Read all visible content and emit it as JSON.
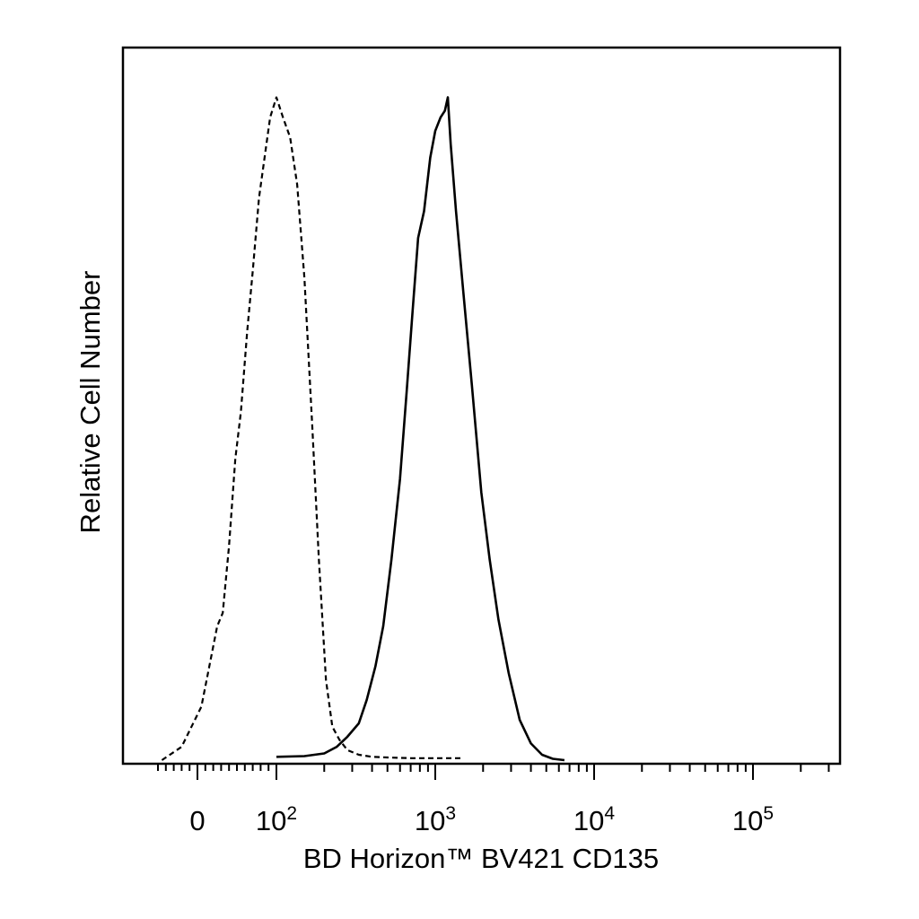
{
  "chart_data": {
    "type": "line",
    "xlabel": "BD Horizon™ BV421 CD135",
    "ylabel": "Relative Cell Number",
    "x_scale": "biexponential",
    "xlim": [
      -60,
      250000
    ],
    "ylim": [
      0,
      1
    ],
    "grid": false,
    "x_ticks": [
      {
        "value": 0,
        "label": "0",
        "sup": ""
      },
      {
        "value": 100,
        "label": "10",
        "sup": "2"
      },
      {
        "value": 1000,
        "label": "10",
        "sup": "3"
      },
      {
        "value": 10000,
        "label": "10",
        "sup": "4"
      },
      {
        "value": 100000,
        "label": "10",
        "sup": "5"
      }
    ],
    "series": [
      {
        "style": "dashed",
        "x": [
          -45,
          -20,
          5,
          15,
          25,
          32,
          40,
          48,
          55,
          63,
          70,
          78,
          85,
          92,
          100,
          110,
          122,
          135,
          150,
          168,
          185,
          205,
          225,
          250,
          280,
          330,
          400,
          500,
          700,
          1000,
          1500
        ],
        "y": [
          0,
          0.02,
          0.08,
          0.14,
          0.2,
          0.22,
          0.32,
          0.45,
          0.52,
          0.64,
          0.73,
          0.84,
          0.9,
          0.96,
          0.99,
          0.96,
          0.93,
          0.86,
          0.72,
          0.5,
          0.3,
          0.12,
          0.05,
          0.03,
          0.015,
          0.008,
          0.005,
          0.004,
          0.003,
          0.003,
          0.003
        ]
      },
      {
        "style": "solid",
        "x": [
          100,
          150,
          200,
          240,
          280,
          330,
          370,
          420,
          470,
          530,
          600,
          660,
          720,
          780,
          850,
          930,
          1000,
          1080,
          1150,
          1200,
          1250,
          1350,
          1500,
          1700,
          1950,
          2200,
          2500,
          2900,
          3400,
          4000,
          4700,
          5500,
          6500
        ],
        "y": [
          0.005,
          0.006,
          0.01,
          0.02,
          0.035,
          0.055,
          0.09,
          0.14,
          0.2,
          0.3,
          0.42,
          0.55,
          0.67,
          0.78,
          0.82,
          0.9,
          0.94,
          0.96,
          0.97,
          0.99,
          0.92,
          0.82,
          0.7,
          0.56,
          0.4,
          0.3,
          0.21,
          0.13,
          0.06,
          0.025,
          0.008,
          0.002,
          0
        ]
      }
    ]
  }
}
